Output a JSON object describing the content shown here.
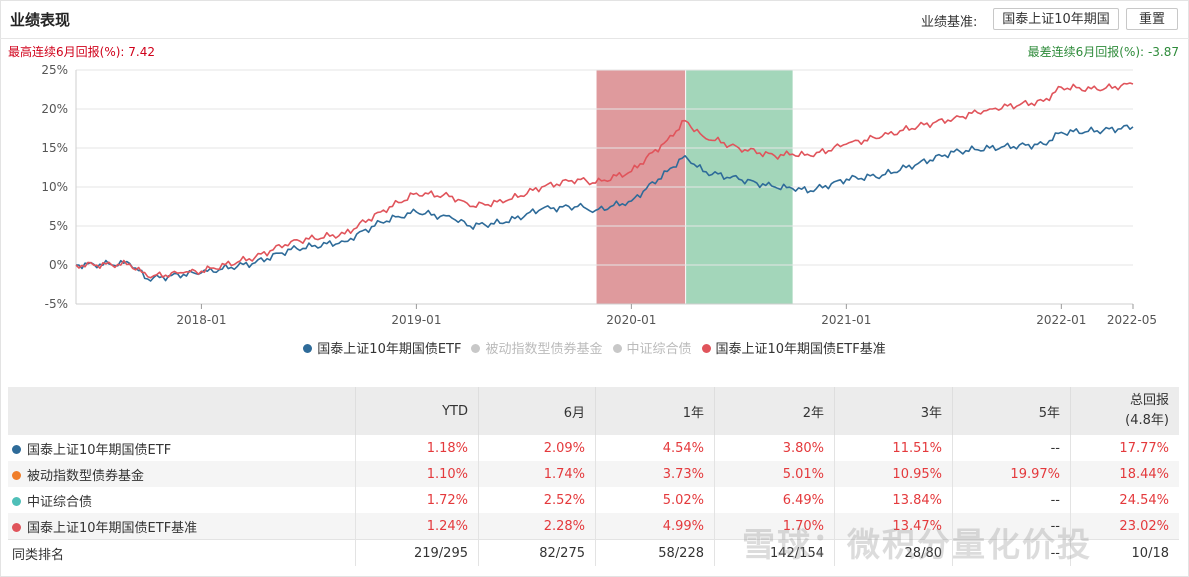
{
  "header": {
    "title": "业绩表现",
    "benchmark_label": "业绩基准:",
    "benchmark_button": "国泰上证10年期国",
    "reset_button": "重置"
  },
  "chart_info": {
    "max_label": "最高连续6月回报(%):",
    "max_value": "7.42",
    "min_label": "最差连续6月回报(%):",
    "min_value": "-3.87"
  },
  "chart_data": {
    "type": "line",
    "x_range": [
      "2017-06",
      "2022-05"
    ],
    "ylim": [
      -5,
      25
    ],
    "y_ticks": [
      "25%",
      "20%",
      "15%",
      "10%",
      "5%",
      "0%",
      "-5%"
    ],
    "x_ticks": [
      "2018-01",
      "2019-01",
      "2020-01",
      "2021-01",
      "2022-01",
      "2022-05"
    ],
    "grid": "horizontal",
    "legend_position": "bottom",
    "highlight_bands": [
      {
        "start": "2019-11",
        "end": "2020-04",
        "color": "#df9a9d",
        "meaning": "max-6m"
      },
      {
        "start": "2020-04",
        "end": "2020-10",
        "color": "#a3d6ba",
        "meaning": "min-6m"
      }
    ],
    "series": [
      {
        "name": "国泰上证10年期国债ETF",
        "color": "#2e6b99",
        "active": true,
        "x": [
          "2017-06",
          "2017-09",
          "2017-10",
          "2017-12",
          "2018-01",
          "2018-04",
          "2018-06",
          "2018-09",
          "2018-11",
          "2018-12",
          "2019-01",
          "2019-03",
          "2019-04",
          "2019-06",
          "2019-08",
          "2019-10",
          "2019-11",
          "2020-01",
          "2020-03",
          "2020-04",
          "2020-05",
          "2020-07",
          "2020-09",
          "2020-10",
          "2020-11",
          "2021-01",
          "2021-03",
          "2021-05",
          "2021-07",
          "2021-09",
          "2021-12",
          "2022-01",
          "2022-03",
          "2022-05"
        ],
        "y": [
          0.0,
          0.2,
          -1.8,
          -1.2,
          -1.0,
          0.3,
          2.0,
          3.0,
          5.5,
          6.2,
          6.8,
          6.0,
          5.0,
          5.5,
          7.2,
          7.5,
          7.0,
          8.2,
          12.0,
          14.0,
          12.0,
          11.0,
          10.0,
          9.8,
          9.5,
          11.0,
          11.5,
          13.0,
          14.5,
          15.0,
          15.5,
          17.0,
          17.2,
          17.7
        ]
      },
      {
        "name": "被动指数型债券基金",
        "color": "#c8c8c8",
        "active": false
      },
      {
        "name": "中证综合债",
        "color": "#c8c8c8",
        "active": false
      },
      {
        "name": "国泰上证10年期国债ETF基准",
        "color": "#e0545b",
        "active": true,
        "x": [
          "2017-06",
          "2017-09",
          "2017-10",
          "2017-12",
          "2018-01",
          "2018-04",
          "2018-06",
          "2018-09",
          "2018-11",
          "2018-12",
          "2019-01",
          "2019-03",
          "2019-04",
          "2019-06",
          "2019-08",
          "2019-10",
          "2019-11",
          "2020-01",
          "2020-03",
          "2020-04",
          "2020-05",
          "2020-07",
          "2020-09",
          "2020-10",
          "2020-11",
          "2021-01",
          "2021-03",
          "2021-05",
          "2021-07",
          "2021-09",
          "2021-12",
          "2022-01",
          "2022-03",
          "2022-05"
        ],
        "y": [
          0.0,
          0.1,
          -1.5,
          -1.0,
          -0.8,
          1.0,
          3.0,
          4.0,
          6.8,
          8.0,
          9.2,
          8.8,
          7.5,
          8.2,
          10.0,
          11.0,
          10.5,
          12.0,
          16.0,
          18.5,
          16.5,
          15.0,
          14.0,
          14.2,
          14.0,
          15.5,
          16.5,
          17.8,
          18.8,
          20.0,
          21.0,
          22.8,
          22.5,
          23.2
        ]
      }
    ]
  },
  "legend": [
    {
      "label": "国泰上证10年期国债ETF",
      "color": "#2e6b99",
      "active": true
    },
    {
      "label": "被动指数型债券基金",
      "color": "#c8c8c8",
      "active": false
    },
    {
      "label": "中证综合债",
      "color": "#c8c8c8",
      "active": false
    },
    {
      "label": "国泰上证10年期国债ETF基准",
      "color": "#e0545b",
      "active": true
    }
  ],
  "table": {
    "headers": [
      "",
      "YTD",
      "6月",
      "1年",
      "2年",
      "3年",
      "5年"
    ],
    "total_header_line1": "总回报",
    "total_header_line2": "(4.8年)",
    "rows": [
      {
        "name": "国泰上证10年期国债ETF",
        "color": "#2e6b99",
        "values": [
          "1.18%",
          "2.09%",
          "4.54%",
          "3.80%",
          "11.51%",
          "--",
          "17.77%"
        ]
      },
      {
        "name": "被动指数型债券基金",
        "color": "#f07e2a",
        "values": [
          "1.10%",
          "1.74%",
          "3.73%",
          "5.01%",
          "10.95%",
          "19.97%",
          "18.44%"
        ]
      },
      {
        "name": "中证综合债",
        "color": "#4fbfb8",
        "values": [
          "1.72%",
          "2.52%",
          "5.02%",
          "6.49%",
          "13.84%",
          "--",
          "24.54%"
        ]
      },
      {
        "name": "国泰上证10年期国债ETF基准",
        "color": "#e0545b",
        "values": [
          "1.24%",
          "2.28%",
          "4.99%",
          "1.70%",
          "13.47%",
          "--",
          "23.02%"
        ]
      }
    ],
    "rank_row": {
      "name": "同类排名",
      "values": [
        "219/295",
        "82/275",
        "58/228",
        "142/154",
        "28/80",
        "--",
        "10/18"
      ]
    }
  },
  "watermark": "雪球：微积分量化价投"
}
